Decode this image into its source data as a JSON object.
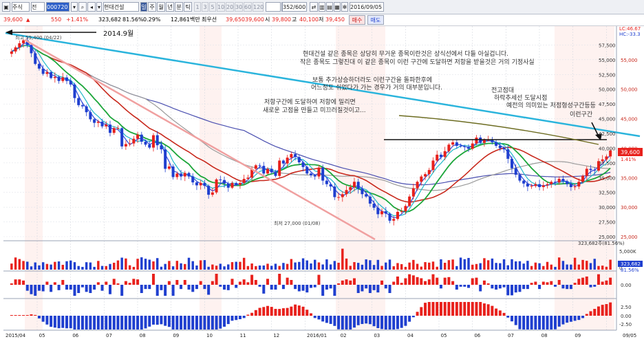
{
  "toolbar": {
    "market_type": "주식",
    "market_scope": "전",
    "code_value": "000720",
    "stock_name": "현대건설",
    "periods": [
      "일",
      "주",
      "월",
      "년",
      "분",
      "틱"
    ],
    "minute_presets": [
      "1",
      "3",
      "5",
      "10",
      "20",
      "30",
      "60",
      "120"
    ],
    "count_display": "352/600",
    "date_value": "2016/09/05"
  },
  "quote": {
    "price": "39,600",
    "change": "550",
    "change_pct": "+1.41%",
    "volume": "323,682",
    "volume_ratio": "81.56%",
    "turnover_rate": "0.29%",
    "amount": "12,861백만",
    "pref_label": "최우선",
    "pref_ask": "39,650",
    "pref_bid": "39,600",
    "open_label": "시",
    "open": "39,800",
    "high_label": "고",
    "high": "40,100",
    "low_label": "저",
    "low": "39,450",
    "buy_label": "매수",
    "sell_label": "매도"
  },
  "colors": {
    "up": "#e8211c",
    "down": "#1f3fcf",
    "ma5": "#2f4be0",
    "ma10": "#20b8c8",
    "ma20": "#1ca63a",
    "ma60": "#c8281c",
    "ma120": "#4a4fb0",
    "ma240": "#9a9a9a",
    "resistance_line": "#2ab4dc",
    "trend_line": "#f0a0a0",
    "ma_long": "#6b6b1f"
  },
  "chart_data": {
    "type": "candlestick",
    "x_labels": [
      "2015/04",
      "05",
      "06",
      "07",
      "08",
      "09",
      "10",
      "11",
      "12",
      "2016/01",
      "02",
      "03",
      "04",
      "05",
      "06",
      "07",
      "08",
      "09",
      "09/05"
    ],
    "price_axis": [
      "57,500",
      "55,000",
      "52,500",
      "50,000",
      "47,500",
      "45,000",
      "42,500",
      "40,000",
      "37,500",
      "35,000",
      "32,500",
      "30,000",
      "27,500",
      "25,000"
    ],
    "price_axis_right": [
      "55,000",
      "50,000",
      "45,000",
      "40,000",
      "35,000",
      "30,000",
      "25,000"
    ],
    "ylim": [
      25000,
      60000
    ],
    "current_price_tag": "39,600",
    "current_pct_tag": "1.41%",
    "lc_label": "LC:46.67",
    "hc_label": "HC:-33.3",
    "high_marker": "최고 59,400 (04/22)",
    "low_marker": "최저 27,000 (01/08)",
    "closes": [
      56400,
      57100,
      57800,
      58300,
      57500,
      56100,
      54300,
      53500,
      52600,
      52900,
      51900,
      52100,
      51400,
      52000,
      51400,
      50800,
      48500,
      47300,
      47100,
      46100,
      44900,
      44300,
      44500,
      43700,
      44000,
      42600,
      43400,
      43400,
      40300,
      40700,
      40800,
      41600,
      42300,
      41100,
      40600,
      40100,
      42200,
      40500,
      39800,
      36500,
      36900,
      35100,
      35700,
      35200,
      35800,
      35200,
      34200,
      33700,
      34100,
      33600,
      32100,
      32500,
      34700,
      34600,
      34000,
      33300,
      34100,
      33800,
      34100,
      34800,
      35000,
      36500,
      37100,
      37000,
      35700,
      36500,
      35900,
      35300,
      37900,
      37400,
      38400,
      39000,
      38500,
      37600,
      36800,
      35700,
      35400,
      35200,
      36700,
      34500,
      33900,
      33500,
      31700,
      31700,
      32200,
      32900,
      33400,
      34300,
      33100,
      32200,
      31800,
      30600,
      29900,
      28800,
      29300,
      28900,
      27700,
      28000,
      29200,
      29300,
      30200,
      31800,
      33200,
      34300,
      35200,
      35600,
      36300,
      37900,
      38900,
      38500,
      39500,
      40600,
      41000,
      40400,
      40300,
      40200,
      39900,
      40800,
      41800,
      40900,
      41400,
      41400,
      41000,
      40400,
      40000,
      39800,
      38200,
      36600,
      35500,
      34500,
      34000,
      33500,
      33600,
      33900,
      33400,
      33700,
      33900,
      34300,
      34200,
      34800,
      34400,
      33900,
      33400,
      33500,
      34300,
      35300,
      36500,
      36300,
      36200,
      37800,
      38100,
      38600,
      39600
    ],
    "volume_axis": [
      "5,000K",
      "0"
    ],
    "volume_label": "323,682주(81.56%)",
    "volume_tags": [
      "323,682",
      "81.56%"
    ],
    "indicator1_axis": [
      "0.00"
    ],
    "indicator2_axis": [
      "2.50",
      "0.00",
      "-2.50"
    ],
    "annotations": {
      "arrow_date": "2014.9월",
      "note1_line1": "현대건설 같은 종목은 상당히 무거운 종목이란것은 상식선에서 다들 아실겁니다.",
      "note1_line2": "작은 종목도 그렇진대 이 같은 종목이 이런 구간에 도달하면 저항을 받을것은 거의 기정사실",
      "note2_line1": "보통 추가상승하더라도 이런구간을 돌파한후에",
      "note2_line2": "어느정도 쉬었다가 가는 경우가 거의 대부분입니다.",
      "note3_line1": "저항구간에 도달하여 저항에 밀리면",
      "note3_line2": "새로운 고점을 만들고 미끄러질것이고...",
      "note4_line1": "전고점대",
      "note4_line2": "하락추세선 도달시점",
      "note4_line3": "예전의 의미있는 저점형성구간등등",
      "note4_line4": "이런구간"
    }
  }
}
